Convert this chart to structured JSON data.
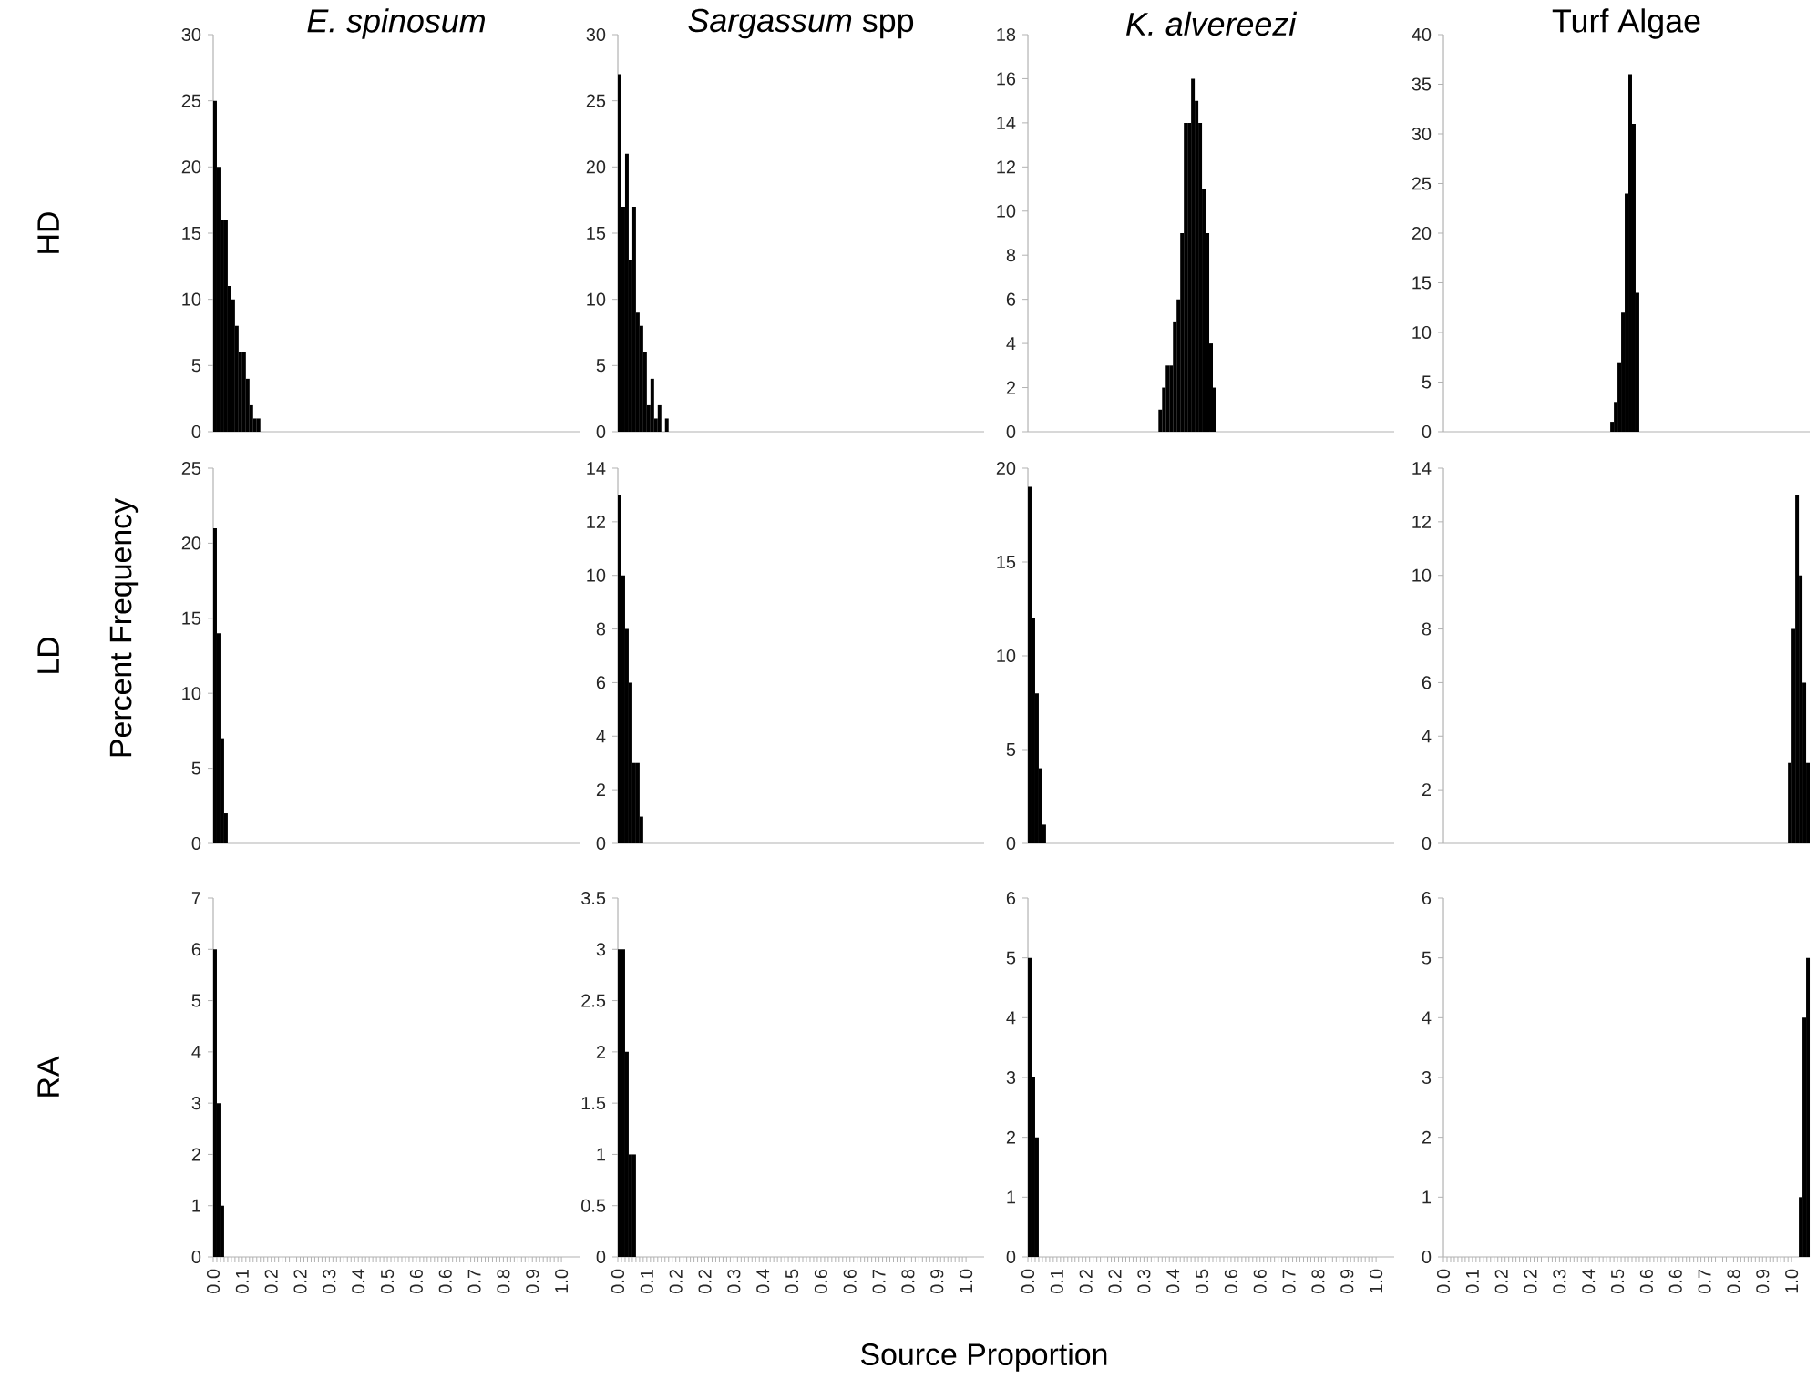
{
  "chart_data": [
    {
      "type": "histogram",
      "title": "*E. spinosum*",
      "ylabel": "HD",
      "bins": [
        0,
        0.01,
        0.02,
        0.03,
        0.04,
        0.05,
        0.06,
        0.07,
        0.08,
        0.09,
        0.1,
        0.11,
        0.12,
        0.13
      ],
      "values": [
        25,
        20,
        16,
        16,
        11,
        10,
        8,
        6,
        6,
        4,
        2,
        1,
        1
      ],
      "color": "#000000",
      "xlim": [
        0,
        1.01
      ],
      "ylim": [
        0,
        30
      ],
      "yticks": [
        0,
        5,
        10,
        15,
        20,
        25,
        30
      ],
      "tick_labels": "y"
    },
    {
      "type": "histogram",
      "title": "*Sargassum* spp",
      "bins": [
        0,
        0.01,
        0.02,
        0.03,
        0.04,
        0.05,
        0.06,
        0.07,
        0.08,
        0.09,
        0.1,
        0.11,
        0.12,
        0.13,
        0.14
      ],
      "values": [
        27,
        17,
        21,
        13,
        17,
        9,
        8,
        6,
        2,
        4,
        1,
        2,
        0,
        1
      ],
      "color": "#000000",
      "xlim": [
        0,
        1.01
      ],
      "ylim": [
        0,
        30
      ],
      "yticks": [
        0,
        5,
        10,
        15,
        20,
        25,
        30
      ],
      "tick_labels": "y"
    },
    {
      "type": "histogram",
      "title": "*K. alvereezi*",
      "bins": [
        0.36,
        0.37,
        0.38,
        0.39,
        0.4,
        0.41,
        0.42,
        0.43,
        0.44,
        0.45,
        0.46,
        0.47,
        0.48,
        0.49,
        0.5,
        0.51,
        0.52
      ],
      "values": [
        1,
        2,
        3,
        3,
        5,
        6,
        9,
        14,
        14,
        16,
        15,
        14,
        11,
        9,
        4,
        2
      ],
      "color": "#000000",
      "xlim": [
        0,
        1.01
      ],
      "ylim": [
        0,
        18
      ],
      "yticks": [
        0,
        2,
        4,
        6,
        8,
        10,
        12,
        14,
        16,
        18
      ],
      "tick_labels": "y"
    },
    {
      "type": "histogram",
      "title": "Turf Algae",
      "bins": [
        0.46,
        0.47,
        0.48,
        0.49,
        0.5,
        0.51,
        0.52,
        0.53,
        0.54
      ],
      "values": [
        1,
        3,
        7,
        12,
        24,
        36,
        31,
        14
      ],
      "color": "#000000",
      "xlim": [
        0,
        1.01
      ],
      "ylim": [
        0,
        40
      ],
      "yticks": [
        0,
        5,
        10,
        15,
        20,
        25,
        30,
        35,
        40
      ],
      "tick_labels": "y"
    },
    {
      "type": "histogram",
      "ylabel": "LD",
      "annotations": [
        "Percent Frequency"
      ],
      "bins": [
        0,
        0.01,
        0.02,
        0.03,
        0.04
      ],
      "values": [
        21,
        14,
        7,
        2
      ],
      "color": "#000000",
      "xlim": [
        0,
        1.01
      ],
      "ylim": [
        0,
        25
      ],
      "yticks": [
        0,
        5,
        10,
        15,
        20,
        25
      ],
      "tick_labels": "y"
    },
    {
      "type": "histogram",
      "bins": [
        0,
        0.01,
        0.02,
        0.03,
        0.04,
        0.05,
        0.06,
        0.07
      ],
      "values": [
        13,
        10,
        8,
        6,
        3,
        3,
        1
      ],
      "color": "#000000",
      "xlim": [
        0,
        1.01
      ],
      "ylim": [
        0,
        14
      ],
      "yticks": [
        0,
        2,
        4,
        6,
        8,
        10,
        12,
        14
      ],
      "tick_labels": "y"
    },
    {
      "type": "histogram",
      "bins": [
        0,
        0.01,
        0.02,
        0.03,
        0.04,
        0.05
      ],
      "values": [
        19,
        12,
        8,
        4,
        1
      ],
      "color": "#000000",
      "xlim": [
        0,
        1.01
      ],
      "ylim": [
        0,
        20
      ],
      "yticks": [
        0,
        5,
        10,
        15,
        20
      ],
      "tick_labels": "y"
    },
    {
      "type": "histogram",
      "bins": [
        0.95,
        0.96,
        0.97,
        0.98,
        0.99,
        1.0,
        1.01
      ],
      "values": [
        3,
        8,
        13,
        10,
        6,
        3
      ],
      "color": "#000000",
      "xlim": [
        0,
        1.01
      ],
      "ylim": [
        0,
        14
      ],
      "yticks": [
        0,
        2,
        4,
        6,
        8,
        10,
        12,
        14
      ],
      "tick_labels": "y"
    },
    {
      "type": "histogram",
      "ylabel": "RA",
      "bins": [
        0,
        0.01,
        0.02,
        0.03
      ],
      "values": [
        6,
        3,
        1
      ],
      "color": "#000000",
      "xlim": [
        0,
        1.01
      ],
      "ylim": [
        0,
        7
      ],
      "yticks": [
        0,
        1,
        2,
        3,
        4,
        5,
        6,
        7
      ],
      "xticks": [
        {
          "value": 0,
          "label": "0.0"
        },
        {
          "value": 0.08,
          "label": "0.1"
        },
        {
          "value": 0.16,
          "label": "0.2"
        },
        {
          "value": 0.24,
          "label": "0.2"
        },
        {
          "value": 0.32,
          "label": "0.3"
        },
        {
          "value": 0.4,
          "label": "0.4"
        },
        {
          "value": 0.48,
          "label": "0.5"
        },
        {
          "value": 0.56,
          "label": "0.6"
        },
        {
          "value": 0.64,
          "label": "0.6"
        },
        {
          "value": 0.72,
          "label": "0.7"
        },
        {
          "value": 0.8,
          "label": "0.8"
        },
        {
          "value": 0.88,
          "label": "0.9"
        },
        {
          "value": 0.96,
          "label": "1.0"
        }
      ]
    },
    {
      "type": "histogram",
      "xlabel": "Source Proportion",
      "bins": [
        0,
        0.01,
        0.02,
        0.03,
        0.04,
        0.05
      ],
      "values": [
        3,
        3,
        2,
        1,
        1
      ],
      "color": "#000000",
      "xlim": [
        0,
        1.01
      ],
      "ylim": [
        0,
        3.5
      ],
      "yticks": [
        0,
        0.5,
        1,
        1.5,
        2,
        2.5,
        3,
        3.5
      ],
      "xticks": [
        {
          "value": 0,
          "label": "0.0"
        },
        {
          "value": 0.08,
          "label": "0.1"
        },
        {
          "value": 0.16,
          "label": "0.2"
        },
        {
          "value": 0.24,
          "label": "0.2"
        },
        {
          "value": 0.32,
          "label": "0.3"
        },
        {
          "value": 0.4,
          "label": "0.4"
        },
        {
          "value": 0.48,
          "label": "0.5"
        },
        {
          "value": 0.56,
          "label": "0.6"
        },
        {
          "value": 0.64,
          "label": "0.6"
        },
        {
          "value": 0.72,
          "label": "0.7"
        },
        {
          "value": 0.8,
          "label": "0.8"
        },
        {
          "value": 0.88,
          "label": "0.9"
        },
        {
          "value": 0.96,
          "label": "1.0"
        }
      ]
    },
    {
      "type": "histogram",
      "bins": [
        0,
        0.01,
        0.02,
        0.03
      ],
      "values": [
        5,
        3,
        2
      ],
      "color": "#000000",
      "xlim": [
        0,
        1.01
      ],
      "ylim": [
        0,
        6
      ],
      "yticks": [
        0,
        1,
        2,
        3,
        4,
        5,
        6
      ],
      "xticks": [
        {
          "value": 0,
          "label": "0.0"
        },
        {
          "value": 0.08,
          "label": "0.1"
        },
        {
          "value": 0.16,
          "label": "0.2"
        },
        {
          "value": 0.24,
          "label": "0.2"
        },
        {
          "value": 0.32,
          "label": "0.3"
        },
        {
          "value": 0.4,
          "label": "0.4"
        },
        {
          "value": 0.48,
          "label": "0.5"
        },
        {
          "value": 0.56,
          "label": "0.6"
        },
        {
          "value": 0.64,
          "label": "0.6"
        },
        {
          "value": 0.72,
          "label": "0.7"
        },
        {
          "value": 0.8,
          "label": "0.8"
        },
        {
          "value": 0.88,
          "label": "0.9"
        },
        {
          "value": 0.96,
          "label": "1.0"
        }
      ]
    },
    {
      "type": "histogram",
      "bins": [
        0.98,
        0.99,
        1.0,
        1.01
      ],
      "values": [
        1,
        4,
        5
      ],
      "color": "#000000",
      "xlim": [
        0,
        1.01
      ],
      "ylim": [
        0,
        6
      ],
      "yticks": [
        0,
        1,
        2,
        3,
        4,
        5,
        6
      ],
      "xticks": [
        {
          "value": 0,
          "label": "0.0"
        },
        {
          "value": 0.08,
          "label": "0.1"
        },
        {
          "value": 0.16,
          "label": "0.2"
        },
        {
          "value": 0.24,
          "label": "0.2"
        },
        {
          "value": 0.32,
          "label": "0.3"
        },
        {
          "value": 0.4,
          "label": "0.4"
        },
        {
          "value": 0.48,
          "label": "0.5"
        },
        {
          "value": 0.56,
          "label": "0.6"
        },
        {
          "value": 0.64,
          "label": "0.6"
        },
        {
          "value": 0.72,
          "label": "0.7"
        },
        {
          "value": 0.8,
          "label": "0.8"
        },
        {
          "value": 0.88,
          "label": "0.9"
        },
        {
          "value": 0.96,
          "label": "1.0"
        }
      ]
    }
  ]
}
